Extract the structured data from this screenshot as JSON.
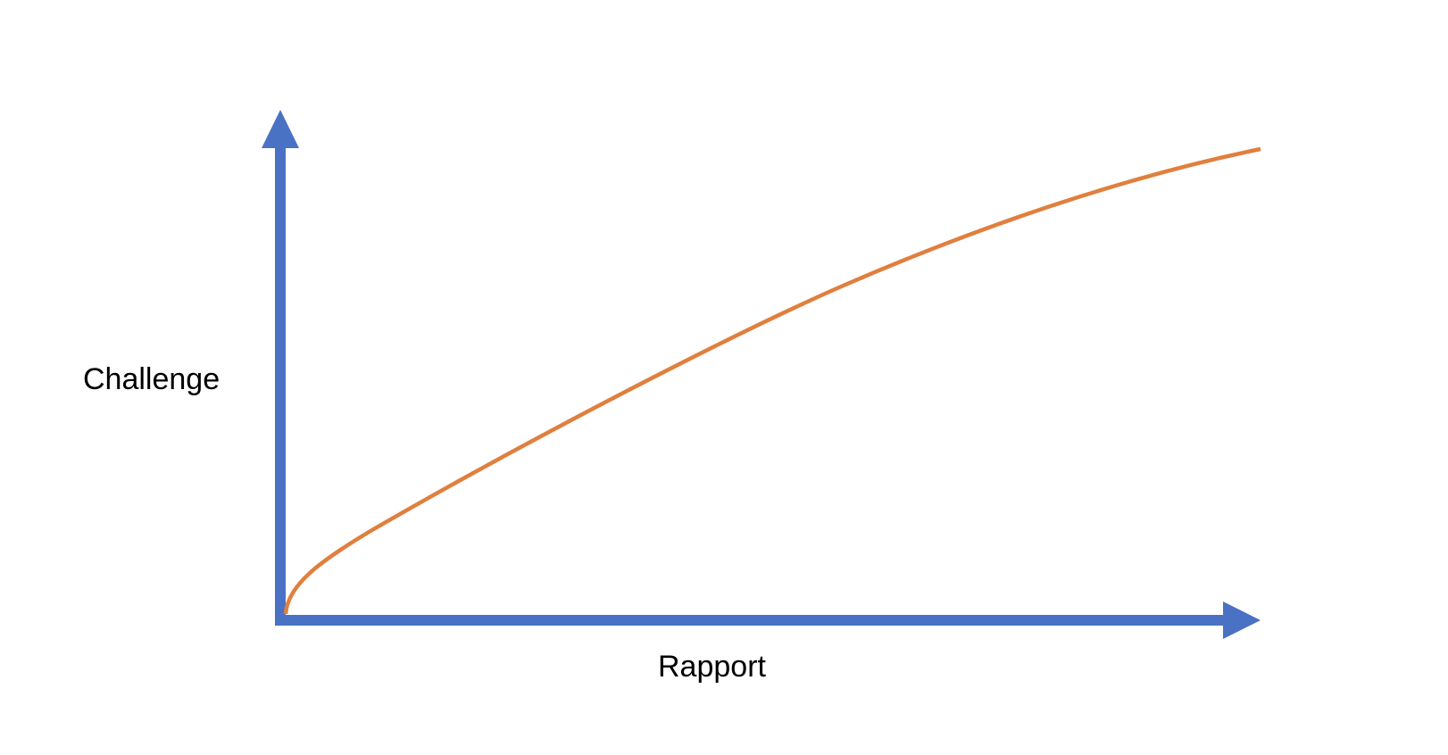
{
  "labels": {
    "y_axis": "Challenge",
    "x_axis": "Rapport"
  },
  "colors": {
    "axis": "#4a72c4",
    "curve": "#e07f3e",
    "background": "#ffffff",
    "text": "#000000"
  }
}
